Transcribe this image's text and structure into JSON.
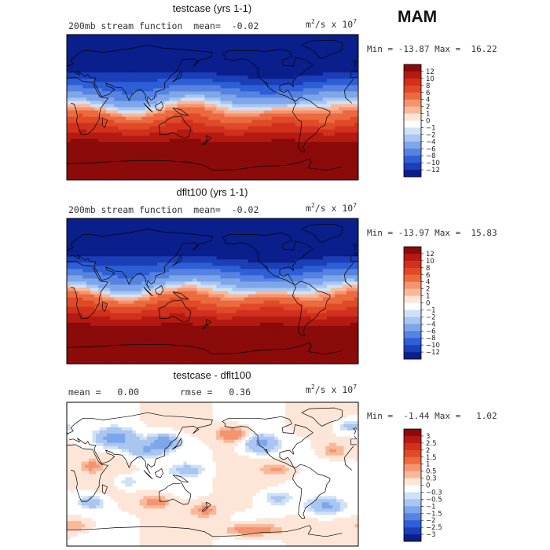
{
  "season": "MAM",
  "panels": [
    {
      "title": "testcase (yrs 1-1)",
      "subtitle_left": "200mb stream function",
      "mean_label": "mean=",
      "mean_value": "-0.02",
      "rmse_label": "",
      "rmse_value": "",
      "units_base": "m",
      "units_exp1": "2",
      "units_mid": "/s x 10",
      "units_exp2": "7",
      "minmax": "Min = -13.87 Max =  16.22",
      "colorbar_labels": [
        "12",
        "10",
        "8",
        "6",
        "4",
        "2",
        "1",
        "0",
        "-1",
        "-2",
        "-4",
        "-6",
        "-8",
        "-10",
        "-12"
      ],
      "colorbar_colors": [
        "#8b0a0a",
        "#b51a12",
        "#d0301c",
        "#e04a28",
        "#ec6a3e",
        "#f49470",
        "#fab89a",
        "#fde6d8",
        "#ffffff",
        "#cfe1f7",
        "#a8c6f0",
        "#7ea6ea",
        "#5683e0",
        "#2e5fd6",
        "#1a3fb8",
        "#0a1f8c"
      ],
      "map_colors": [
        "#0a1f8c",
        "#1a3fb8",
        "#2e5fd6",
        "#5683e0",
        "#7ea6ea",
        "#a8c6f0",
        "#cfe1f7",
        "#fde6d8",
        "#fab89a",
        "#f49470",
        "#ec6a3e",
        "#e04a28",
        "#d0301c",
        "#b51a12",
        "#8b0a0a"
      ]
    },
    {
      "title": "dflt100 (yrs 1-1)",
      "subtitle_left": "200mb stream function",
      "mean_label": "mean=",
      "mean_value": "-0.02",
      "rmse_label": "",
      "rmse_value": "",
      "units_base": "m",
      "units_exp1": "2",
      "units_mid": "/s x 10",
      "units_exp2": "7",
      "minmax": "Min = -13.97 Max =  15.83",
      "colorbar_labels": [
        "12",
        "10",
        "8",
        "6",
        "4",
        "2",
        "1",
        "0",
        "-1",
        "-2",
        "-4",
        "-6",
        "-8",
        "-10",
        "-12"
      ],
      "colorbar_colors": [
        "#8b0a0a",
        "#b51a12",
        "#d0301c",
        "#e04a28",
        "#ec6a3e",
        "#f49470",
        "#fab89a",
        "#fde6d8",
        "#ffffff",
        "#cfe1f7",
        "#a8c6f0",
        "#7ea6ea",
        "#5683e0",
        "#2e5fd6",
        "#1a3fb8",
        "#0a1f8c"
      ],
      "map_colors": [
        "#0a1f8c",
        "#1a3fb8",
        "#2e5fd6",
        "#5683e0",
        "#7ea6ea",
        "#a8c6f0",
        "#cfe1f7",
        "#fde6d8",
        "#fab89a",
        "#f49470",
        "#ec6a3e",
        "#e04a28",
        "#d0301c",
        "#b51a12",
        "#8b0a0a"
      ]
    },
    {
      "title": "testcase - dflt100",
      "subtitle_left": "",
      "mean_label": "mean =",
      "mean_value": "0.00",
      "rmse_label": "rmse =",
      "rmse_value": "0.36",
      "units_base": "m",
      "units_exp1": "2",
      "units_mid": "/s x 10",
      "units_exp2": "7",
      "minmax": "Min =  -1.44 Max =   1.02",
      "colorbar_labels": [
        "3",
        "2.5",
        "2",
        "1.5",
        "1",
        "0.5",
        "0.3",
        "0",
        "-0.3",
        "-0.5",
        "-1",
        "-1.5",
        "-2",
        "-2.5",
        "-3"
      ],
      "colorbar_colors": [
        "#8b0a0a",
        "#b51a12",
        "#d0301c",
        "#e04a28",
        "#ec6a3e",
        "#f49470",
        "#fab89a",
        "#fde6d8",
        "#ffffff",
        "#cfe1f7",
        "#a8c6f0",
        "#7ea6ea",
        "#5683e0",
        "#2e5fd6",
        "#1a3fb8",
        "#0a1f8c"
      ]
    }
  ],
  "chart_data": [
    {
      "type": "heatmap",
      "title": "testcase (yrs 1-1)",
      "subtitle": "200mb stream function",
      "mean": -0.02,
      "min": -13.87,
      "max": 16.22,
      "units": "m^2/s x 10^7",
      "contour_levels": [
        -12,
        -10,
        -8,
        -6,
        -4,
        -2,
        -1,
        0,
        1,
        2,
        4,
        6,
        8,
        10,
        12
      ]
    },
    {
      "type": "heatmap",
      "title": "dflt100 (yrs 1-1)",
      "subtitle": "200mb stream function",
      "mean": -0.02,
      "min": -13.97,
      "max": 15.83,
      "units": "m^2/s x 10^7",
      "contour_levels": [
        -12,
        -10,
        -8,
        -6,
        -4,
        -2,
        -1,
        0,
        1,
        2,
        4,
        6,
        8,
        10,
        12
      ]
    },
    {
      "type": "heatmap",
      "title": "testcase - dflt100",
      "mean": 0.0,
      "rmse": 0.36,
      "min": -1.44,
      "max": 1.02,
      "units": "m^2/s x 10^7",
      "contour_levels": [
        -3,
        -2.5,
        -2,
        -1.5,
        -1,
        -0.5,
        -0.3,
        0,
        0.3,
        0.5,
        1,
        1.5,
        2,
        2.5,
        3
      ]
    }
  ]
}
